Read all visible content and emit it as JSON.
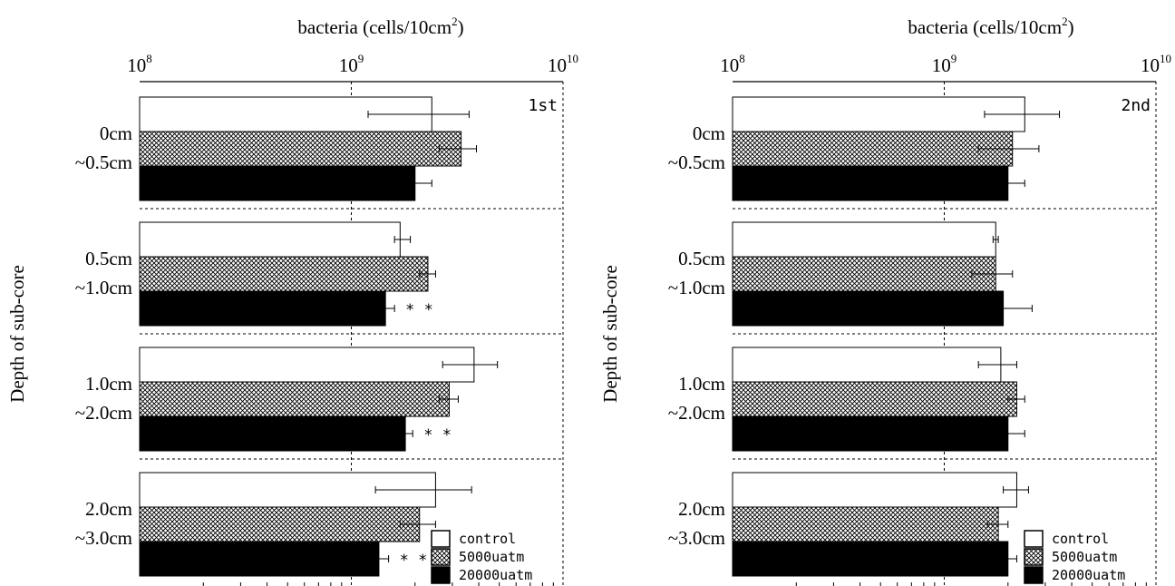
{
  "chart_data": [
    {
      "type": "bar",
      "orientation": "horizontal",
      "panel_label": "1st",
      "xlabel": "bacteria (cells/10cm",
      "xlabel_sup": "2",
      "xlabel_close": ")",
      "ylabel": "Depth of sub-core",
      "xscale": "log",
      "xlim": [
        100000000,
        10000000000
      ],
      "xticks": [
        {
          "base": "10",
          "exp": "8"
        },
        {
          "base": "10",
          "exp": "9"
        },
        {
          "base": "10",
          "exp": "10"
        }
      ],
      "grid": "dashed",
      "legend_placement": "bottom-right",
      "categories": [
        {
          "line1": "0cm",
          "line2": "~0.5cm"
        },
        {
          "line1": "0.5cm",
          "line2": "~1.0cm"
        },
        {
          "line1": "1.0cm",
          "line2": "~2.0cm"
        },
        {
          "line1": "2.0cm",
          "line2": "~3.0cm"
        }
      ],
      "series": [
        {
          "name": "control",
          "fill": "white",
          "values": [
            2400000000,
            1700000000,
            3800000000,
            2500000000
          ],
          "err_low": [
            1200000000,
            1600000000,
            2700000000,
            1300000000
          ],
          "err_high": [
            3600000000,
            1900000000,
            4900000000,
            3700000000
          ]
        },
        {
          "name": "5000uatm",
          "fill": "crosshatch",
          "values": [
            3300000000,
            2300000000,
            2900000000,
            2100000000
          ],
          "err_low": [
            2600000000,
            2100000000,
            2600000000,
            1700000000
          ],
          "err_high": [
            3900000000,
            2500000000,
            3200000000,
            2500000000
          ]
        },
        {
          "name": "20000uatm",
          "fill": "black",
          "values": [
            2000000000,
            1450000000,
            1800000000,
            1350000000
          ],
          "err_low": [
            1700000000,
            1350000000,
            1600000000,
            1200000000
          ],
          "err_high": [
            2400000000,
            1600000000,
            1950000000,
            1500000000
          ]
        }
      ],
      "annotations": [
        {
          "category_index": 1,
          "series_index": 2,
          "text": "* *"
        },
        {
          "category_index": 2,
          "series_index": 2,
          "text": "* *"
        },
        {
          "category_index": 3,
          "series_index": 2,
          "text": "* *"
        }
      ]
    },
    {
      "type": "bar",
      "orientation": "horizontal",
      "panel_label": "2nd",
      "xlabel": "bacteria (cells/10cm",
      "xlabel_sup": "2",
      "xlabel_close": ")",
      "ylabel": "Depth of sub-core",
      "xscale": "log",
      "xlim": [
        100000000,
        10000000000
      ],
      "xticks": [
        {
          "base": "10",
          "exp": "8"
        },
        {
          "base": "10",
          "exp": "9"
        },
        {
          "base": "10",
          "exp": "10"
        }
      ],
      "grid": "dashed",
      "legend_placement": "bottom-right",
      "categories": [
        {
          "line1": "0cm",
          "line2": "~0.5cm"
        },
        {
          "line1": "0.5cm",
          "line2": "~1.0cm"
        },
        {
          "line1": "1.0cm",
          "line2": "~2.0cm"
        },
        {
          "line1": "2.0cm",
          "line2": "~3.0cm"
        }
      ],
      "series": [
        {
          "name": "control",
          "fill": "white",
          "values": [
            2400000000,
            1750000000,
            1850000000,
            2200000000
          ],
          "err_low": [
            1550000000,
            1700000000,
            1450000000,
            1900000000
          ],
          "err_high": [
            3500000000,
            1800000000,
            2200000000,
            2500000000
          ]
        },
        {
          "name": "5000uatm",
          "fill": "crosshatch",
          "values": [
            2100000000,
            1750000000,
            2200000000,
            1800000000
          ],
          "err_low": [
            1450000000,
            1350000000,
            2000000000,
            1600000000
          ],
          "err_high": [
            2800000000,
            2100000000,
            2400000000,
            2000000000
          ]
        },
        {
          "name": "20000uatm",
          "fill": "black",
          "values": [
            2000000000,
            1900000000,
            2000000000,
            2000000000
          ],
          "err_low": [
            1750000000,
            1500000000,
            1800000000,
            1800000000
          ],
          "err_high": [
            2400000000,
            2600000000,
            2400000000,
            2200000000
          ]
        }
      ],
      "annotations": []
    }
  ]
}
